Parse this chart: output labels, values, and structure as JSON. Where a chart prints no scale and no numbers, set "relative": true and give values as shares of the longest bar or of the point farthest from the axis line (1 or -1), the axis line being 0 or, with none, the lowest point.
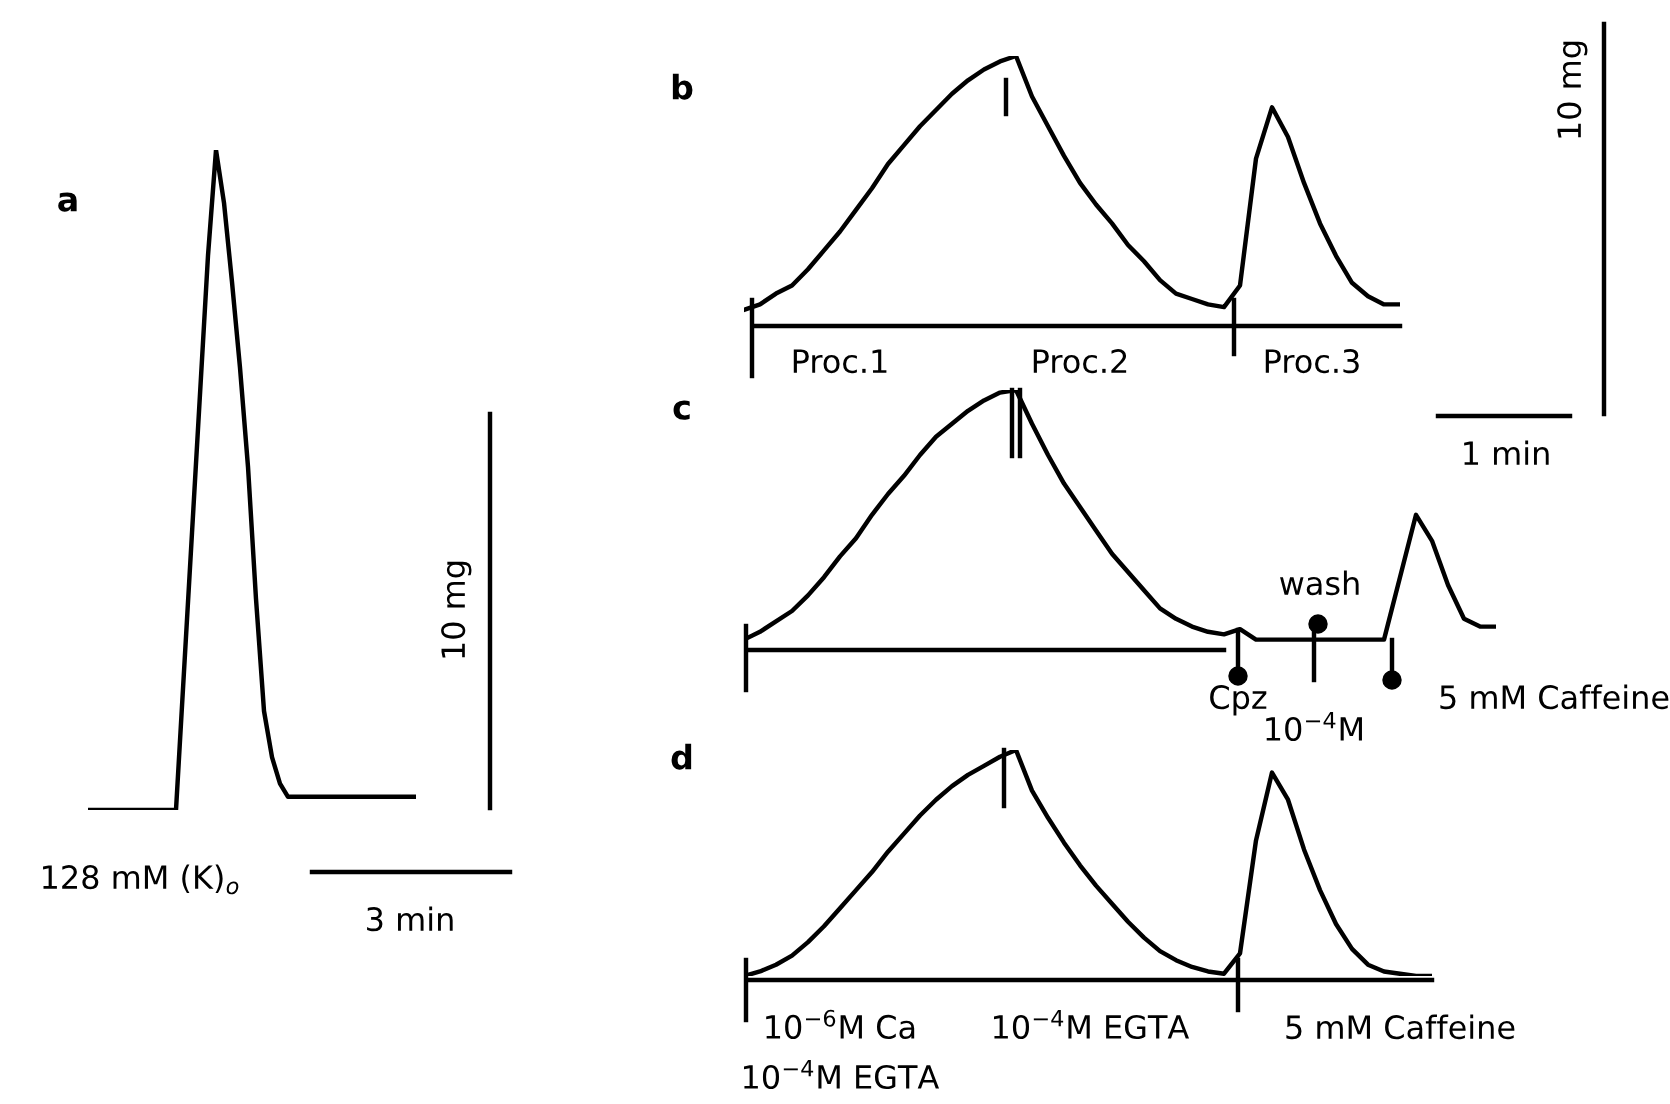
{
  "chart_data": [
    {
      "type": "line",
      "title": "a",
      "relative": true,
      "categories": [
        null,
        null,
        null,
        null,
        null,
        null,
        null,
        null,
        null,
        null,
        null,
        null,
        null,
        null,
        null,
        null,
        null,
        null,
        null,
        null,
        null,
        null,
        null,
        null,
        null,
        null,
        null,
        null,
        null,
        null,
        null,
        null,
        null,
        null,
        null,
        null,
        null,
        null,
        null,
        null,
        null,
        null
      ],
      "series": [
        {
          "color": "#000000",
          "values": [
            0,
            0,
            0,
            0,
            0,
            0,
            0,
            0,
            0,
            0,
            0,
            0,
            0.21,
            0.42,
            0.63,
            0.84,
            1.0,
            0.92,
            0.8,
            0.67,
            0.52,
            0.32,
            0.15,
            0.08,
            0.04,
            0.02,
            0.02,
            0.02,
            0.02,
            0.02,
            0.02,
            0.02,
            0.02,
            0.02,
            0.02,
            0.02,
            0.02,
            0.02,
            0.02,
            0.02,
            0.02,
            0.02
          ]
        }
      ],
      "annotations": [
        "128 mM (K)$_{o}$",
        "10 mg",
        "3 min"
      ]
    },
    {
      "type": "line",
      "title": "b",
      "relative": true,
      "categories": [
        null,
        null,
        null,
        null,
        null,
        null,
        null,
        null,
        null,
        null,
        null,
        null,
        null,
        null,
        null,
        null,
        null,
        null,
        null,
        null,
        null,
        null,
        null,
        null,
        null,
        null,
        null,
        null,
        null,
        null,
        null,
        null,
        null,
        null,
        null,
        null,
        null,
        null,
        null,
        null,
        null,
        null
      ],
      "series": [
        {
          "color": "#000000",
          "values": [
            0.06,
            0.08,
            0.12,
            0.15,
            0.21,
            0.28,
            0.35,
            0.43,
            0.51,
            0.6,
            0.67,
            0.74,
            0.8,
            0.86,
            0.91,
            0.95,
            0.98,
            1.0,
            0.85,
            0.74,
            0.63,
            0.53,
            0.45,
            0.38,
            0.3,
            0.24,
            0.17,
            0.12,
            0.1,
            0.08,
            0.07,
            0.15,
            0.62,
            0.81,
            0.7,
            0.53,
            0.38,
            0.26,
            0.16,
            0.11,
            0.08,
            0.08
          ]
        }
      ],
      "annotations": [
        "Proc.1",
        "Proc.2",
        "Proc.3",
        "10 mg",
        "1 min"
      ]
    },
    {
      "type": "line",
      "title": "c",
      "relative": true,
      "categories": [
        null,
        null,
        null,
        null,
        null,
        null,
        null,
        null,
        null,
        null,
        null,
        null,
        null,
        null,
        null,
        null,
        null,
        null,
        null,
        null,
        null,
        null,
        null,
        null,
        null,
        null,
        null,
        null,
        null,
        null,
        null,
        null,
        null,
        null,
        null,
        null,
        null,
        null,
        null,
        null,
        null,
        null,
        null,
        null,
        null,
        null,
        null,
        null
      ],
      "series": [
        {
          "color": "#000000",
          "values": [
            0.04,
            0.07,
            0.11,
            0.15,
            0.21,
            0.28,
            0.36,
            0.43,
            0.52,
            0.6,
            0.67,
            0.75,
            0.82,
            0.87,
            0.92,
            0.96,
            0.99,
            1.0,
            0.87,
            0.75,
            0.64,
            0.55,
            0.46,
            0.37,
            0.3,
            0.23,
            0.16,
            0.12,
            0.09,
            0.07,
            0.06,
            0.08,
            0.04,
            0.04,
            0.04,
            0.04,
            0.04,
            0.04,
            0.04,
            0.04,
            0.04,
            0.28,
            0.52,
            0.42,
            0.25,
            0.12,
            0.09,
            0.09
          ]
        }
      ],
      "annotations": [
        "wash",
        "Cpz",
        "10$^{−4}$M",
        "5 mM Caffeine"
      ]
    },
    {
      "type": "line",
      "title": "d",
      "relative": true,
      "categories": [
        null,
        null,
        null,
        null,
        null,
        null,
        null,
        null,
        null,
        null,
        null,
        null,
        null,
        null,
        null,
        null,
        null,
        null,
        null,
        null,
        null,
        null,
        null,
        null,
        null,
        null,
        null,
        null,
        null,
        null,
        null,
        null,
        null,
        null,
        null,
        null,
        null,
        null,
        null,
        null,
        null,
        null,
        null,
        null
      ],
      "series": [
        {
          "color": "#000000",
          "values": [
            0,
            0.02,
            0.05,
            0.09,
            0.15,
            0.22,
            0.3,
            0.38,
            0.46,
            0.55,
            0.63,
            0.71,
            0.78,
            0.84,
            0.89,
            0.93,
            0.97,
            1.0,
            0.82,
            0.7,
            0.59,
            0.49,
            0.4,
            0.32,
            0.24,
            0.17,
            0.11,
            0.07,
            0.04,
            0.02,
            0.01,
            0.1,
            0.6,
            0.9,
            0.78,
            0.56,
            0.38,
            0.23,
            0.12,
            0.05,
            0.02,
            0.01,
            0,
            0
          ]
        }
      ],
      "annotations": [
        "10$^{−6}$M Ca",
        "10$^{−4}$M EGTA",
        "10$^{−4}$M EGTA",
        "5 mM Caffeine"
      ]
    }
  ]
}
